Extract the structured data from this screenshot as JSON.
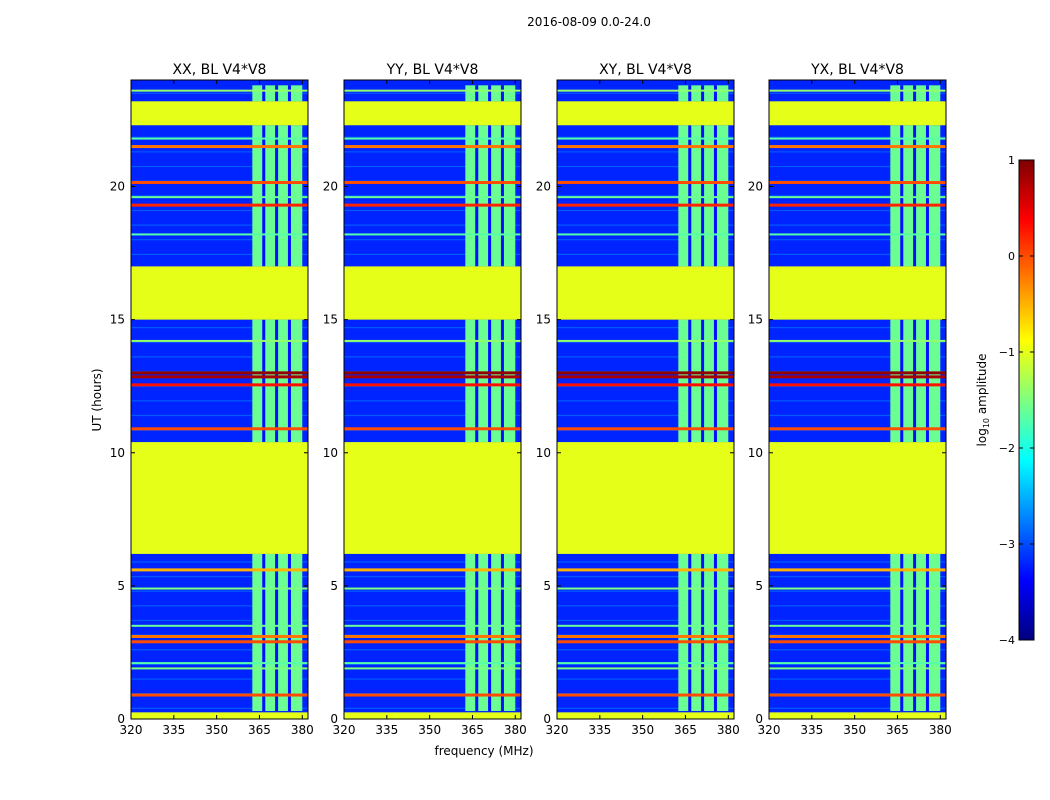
{
  "figure": {
    "suptitle": "2016-08-09 0.0-24.0"
  },
  "chart_data": {
    "type": "heatmap",
    "ylabel": "UT (hours)",
    "xlabel": "frequency (MHz)",
    "xlim": [
      320,
      382
    ],
    "ylim": [
      0,
      24
    ],
    "xticks": [
      320,
      335,
      350,
      365,
      380
    ],
    "yticks": [
      0,
      5,
      10,
      15,
      20
    ],
    "panels": [
      {
        "title": "XX, BL V4*V8"
      },
      {
        "title": "YY, BL V4*V8"
      },
      {
        "title": "XY, BL V4*V8"
      },
      {
        "title": "YX, BL V4*V8"
      }
    ],
    "colorbar": {
      "label": "log10 amplitude",
      "label_base": "log",
      "label_sub": "10",
      "label_rest": " amplitude",
      "range": [
        -4,
        1
      ],
      "ticks": [
        {
          "value": 1,
          "label": "1"
        },
        {
          "value": 0,
          "label": "0"
        },
        {
          "value": -1,
          "label": "−1"
        },
        {
          "value": -2,
          "label": "−2"
        },
        {
          "value": -3,
          "label": "−3"
        },
        {
          "value": -4,
          "label": "−4"
        }
      ],
      "colors": [
        "#00007f",
        "#0000ff",
        "#007fff",
        "#00ffff",
        "#7fff7f",
        "#ffff00",
        "#ff7f00",
        "#ff0000",
        "#7f0000"
      ]
    },
    "flagged_value": -1.0,
    "flagged_ut_ranges": [
      [
        0.0,
        0.25
      ],
      [
        6.2,
        10.4
      ],
      [
        15.0,
        17.0
      ],
      [
        22.3,
        23.2
      ]
    ],
    "rfi_band_mhz": [
      362.5,
      380.0
    ],
    "rfi_channel_gaps_mhz": [
      366.5,
      371.0,
      375.5
    ],
    "rfi_time_ranges": [
      [
        0.3,
        6.2
      ],
      [
        10.4,
        15.0
      ],
      [
        17.0,
        22.3
      ],
      [
        23.2,
        23.8
      ]
    ],
    "background_level": -3.2,
    "rfi_level": -1.6,
    "hot_lines": [
      {
        "ut": 0.9,
        "value": 0.0
      },
      {
        "ut": 2.9,
        "value": 0.0
      },
      {
        "ut": 3.1,
        "value": -0.2
      },
      {
        "ut": 5.6,
        "value": -0.5
      },
      {
        "ut": 10.9,
        "value": 0.0
      },
      {
        "ut": 12.55,
        "value": 0.3
      },
      {
        "ut": 12.85,
        "value": 0.8
      },
      {
        "ut": 13.0,
        "value": 0.9
      },
      {
        "ut": 19.3,
        "value": 0.2
      },
      {
        "ut": 20.15,
        "value": 0.0
      },
      {
        "ut": 21.5,
        "value": -0.2
      },
      {
        "ut": 23.1,
        "value": 0.2
      }
    ],
    "warm_lines": [
      {
        "ut": 1.9,
        "value": -1.5
      },
      {
        "ut": 2.1,
        "value": -1.7
      },
      {
        "ut": 3.5,
        "value": -1.6
      },
      {
        "ut": 4.9,
        "value": -1.5
      },
      {
        "ut": 14.2,
        "value": -1.4
      },
      {
        "ut": 18.2,
        "value": -1.7
      },
      {
        "ut": 19.6,
        "value": -1.6
      },
      {
        "ut": 21.8,
        "value": -1.7
      },
      {
        "ut": 23.6,
        "value": -1.4
      }
    ]
  }
}
